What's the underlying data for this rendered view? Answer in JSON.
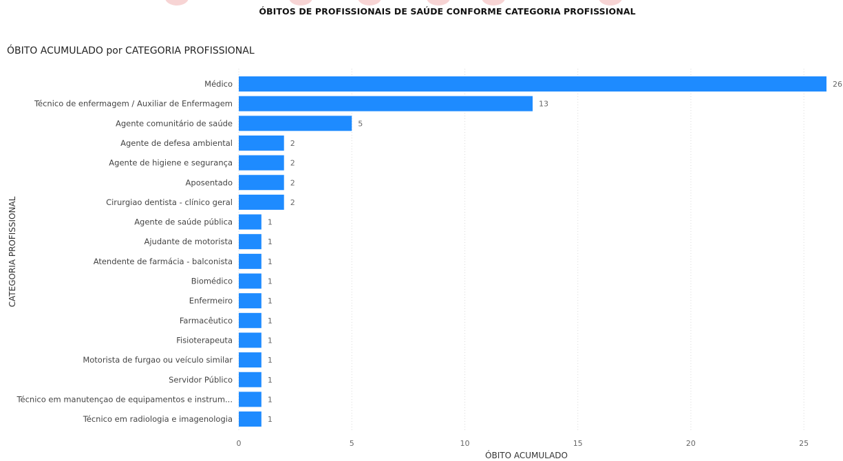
{
  "page": {
    "title": "ÓBITOS DE PROFISSIONAIS DE SAÚDE CONFORME CATEGORIA PROFISSIONAL"
  },
  "colors": {
    "bar": "#1e8bff",
    "grid": "#d9d9d9",
    "label": "#444444",
    "value_label": "#666666",
    "banner": "#f5c9c9"
  },
  "chart_data": {
    "type": "bar",
    "orientation": "horizontal",
    "title": "ÓBITO ACUMULADO por CATEGORIA PROFISSIONAL",
    "xlabel": "ÓBITO ACUMULADO",
    "ylabel": "CATEGORIA PROFISSIONAL",
    "categories": [
      "Médico",
      "Técnico de enfermagem / Auxiliar de Enfermagem",
      "Agente comunitário de saúde",
      "Agente de defesa ambiental",
      "Agente de higiene e segurança",
      "Aposentado",
      "Cirurgiao dentista - clínico geral",
      "Agente de saúde pública",
      "Ajudante de motorista",
      "Atendente de farmácia - balconista",
      "Biomédico",
      "Enfermeiro",
      "Farmacêutico",
      "Fisioterapeuta",
      "Motorista de furgao ou veículo similar",
      "Servidor Público",
      "Técnico em manutençao de equipamentos e instrum...",
      "Técnico em radiologia e imagenologia"
    ],
    "values": [
      26,
      13,
      5,
      2,
      2,
      2,
      2,
      1,
      1,
      1,
      1,
      1,
      1,
      1,
      1,
      1,
      1,
      1
    ],
    "xlim": [
      0,
      26
    ],
    "xticks": [
      0,
      5,
      10,
      15,
      20,
      25
    ],
    "grid": "vertical dotted",
    "data_labels": true
  }
}
